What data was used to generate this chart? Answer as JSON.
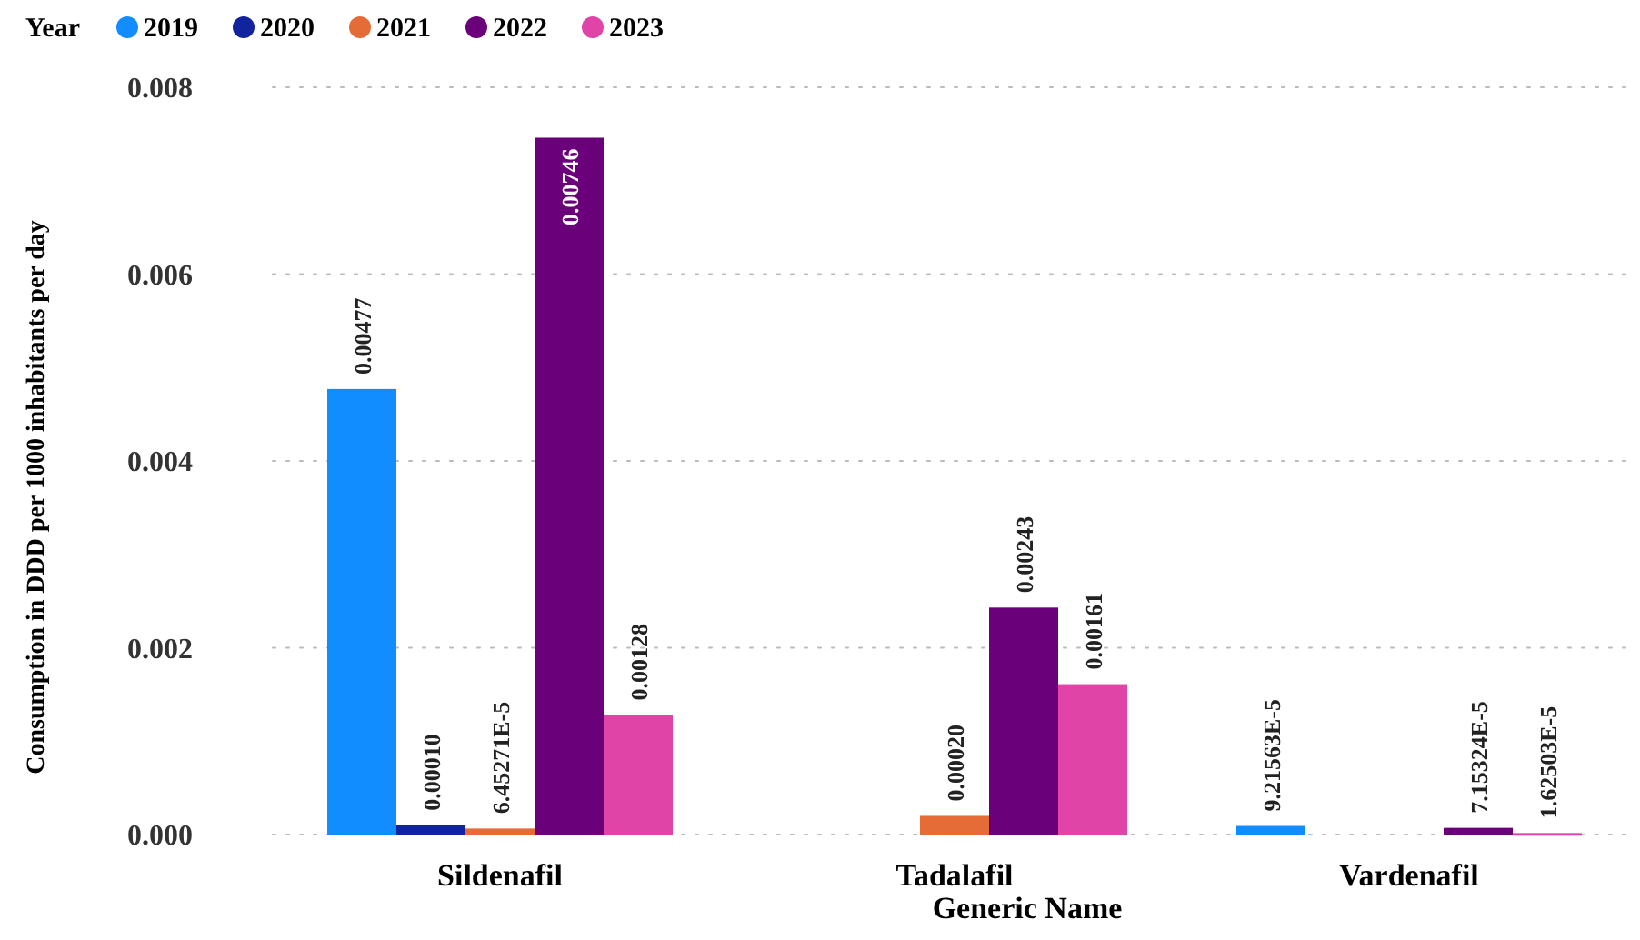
{
  "chart_data": {
    "type": "bar",
    "xlabel": "Generic Name",
    "ylabel": "Consumption in DDD per 1000 inhabitants per day",
    "legend_title": "Year",
    "legend": "top left",
    "grid": "y",
    "categories": [
      "Sildenafil",
      "Tadalafil",
      "Vardenafil"
    ],
    "ylim": [
      0,
      0.008
    ],
    "yticks": [
      {
        "value": 0,
        "label": "0.000"
      },
      {
        "value": 0.002,
        "label": "0.002"
      },
      {
        "value": 0.004,
        "label": "0.004"
      },
      {
        "value": 0.006,
        "label": "0.006"
      },
      {
        "value": 0.008,
        "label": "0.008"
      }
    ],
    "series": [
      {
        "name": "2019",
        "color": "#118dff",
        "values": [
          0.00477,
          null,
          9.21563e-05
        ],
        "value_labels": [
          "0.00477",
          null,
          "9.21563E-5"
        ]
      },
      {
        "name": "2020",
        "color": "#12239e",
        "values": [
          0.0001,
          null,
          null
        ],
        "value_labels": [
          "0.00010",
          null,
          null
        ]
      },
      {
        "name": "2021",
        "color": "#e66c37",
        "values": [
          6.45271e-05,
          0.0002,
          null
        ],
        "value_labels": [
          "6.45271E-5",
          "0.00020",
          null
        ]
      },
      {
        "name": "2022",
        "color": "#6b007b",
        "values": [
          0.00746,
          0.00243,
          7.15324e-05
        ],
        "value_labels": [
          "0.00746",
          "0.00243",
          "7.15324E-5"
        ]
      },
      {
        "name": "2023",
        "color": "#e044a7",
        "values": [
          0.00128,
          0.00161,
          1.62503e-05
        ],
        "value_labels": [
          "0.00128",
          "0.00161",
          "1.62503E-5"
        ]
      }
    ]
  }
}
